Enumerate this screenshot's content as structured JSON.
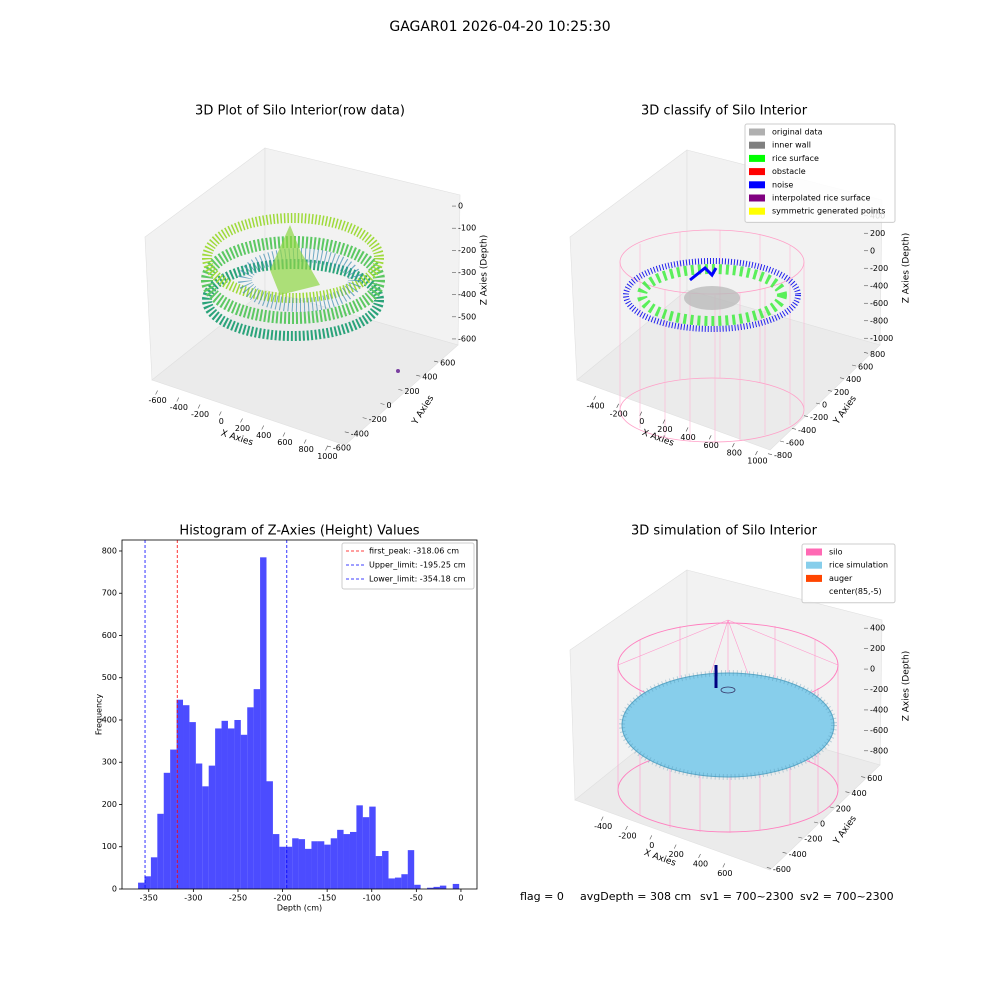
{
  "suptitle": "GAGAR01 2026-04-20 10:25:30",
  "chart_data": [
    {
      "type": "scatter3d",
      "title": "3D Plot of Silo Interior(row data)",
      "xlabel": "X Axies",
      "ylabel": "Y Axies",
      "zlabel": "Z Axies (Depth)",
      "xlim": [
        -700,
        1100
      ],
      "xticks": [
        -600,
        -400,
        -200,
        0,
        200,
        400,
        600,
        800,
        1000
      ],
      "ylim": [
        -700,
        700
      ],
      "yticks": [
        -600,
        -400,
        -200,
        0,
        200,
        400,
        600
      ],
      "zlim": [
        -650,
        50
      ],
      "zticks": [
        0,
        -100,
        -200,
        -300,
        -400,
        -500,
        -600
      ]
    },
    {
      "type": "scatter3d",
      "title": "3D classify of Silo Interior",
      "xlabel": "X Axies",
      "ylabel": "Y Axies",
      "zlabel": "Z Axies (Depth)",
      "xlim": [
        -500,
        1100
      ],
      "xticks": [
        -400,
        -200,
        0,
        200,
        400,
        600,
        800,
        1000
      ],
      "ylim": [
        -900,
        900
      ],
      "yticks": [
        -800,
        -600,
        -400,
        -200,
        0,
        200,
        400,
        600,
        800
      ],
      "zlim": [
        -1100,
        500
      ],
      "zticks": [
        400,
        200,
        0,
        -200,
        -400,
        -600,
        -800,
        -1000
      ],
      "legend": [
        {
          "name": "original data",
          "color": "#b0b0b0"
        },
        {
          "name": "inner wall",
          "color": "#808080"
        },
        {
          "name": "rice surface",
          "color": "#00ff00"
        },
        {
          "name": "obstacle",
          "color": "#ff0000"
        },
        {
          "name": "noise",
          "color": "#0000ff"
        },
        {
          "name": "interpolated rice surface",
          "color": "#800080"
        },
        {
          "name": "symmetric generated points",
          "color": "#ffff00"
        }
      ]
    },
    {
      "type": "histogram",
      "title": "Histogram of Z-Axies (Height) Values",
      "xlabel": "Depth (cm)",
      "ylabel": "Frequency",
      "color": "#0000ff",
      "bins": [
        -362,
        -354.8,
        -347.6,
        -340.4,
        -333.2,
        -326,
        -318.8,
        -311.6,
        -304.4,
        -297.2,
        -290,
        -282.8,
        -275.6,
        -268.4,
        -261.2,
        -254,
        -246.8,
        -239.6,
        -232.4,
        -225.2,
        -218,
        -210.8,
        -203.6,
        -196.4,
        -189.2,
        -182,
        -174.8,
        -167.6,
        -160.4,
        -153.2,
        -146,
        -138.8,
        -131.6,
        -124.4,
        -117.2,
        -110,
        -102.8,
        -95.6,
        -88.4,
        -81.2,
        -74,
        -66.8,
        -59.6,
        -52.4,
        -45.2,
        -38,
        -30.8,
        -23.6,
        -16.4,
        -9.2,
        -2
      ],
      "counts": [
        15,
        30,
        75,
        178,
        275,
        330,
        448,
        435,
        395,
        297,
        243,
        292,
        380,
        398,
        380,
        400,
        365,
        430,
        473,
        785,
        255,
        130,
        100,
        100,
        120,
        118,
        95,
        113,
        113,
        105,
        120,
        140,
        130,
        135,
        198,
        170,
        195,
        78,
        90,
        25,
        27,
        35,
        92,
        10,
        0,
        3,
        5,
        8,
        0,
        12
      ],
      "xlim": [
        -380,
        18
      ],
      "xticks": [
        -350,
        -300,
        -250,
        -200,
        -150,
        -100,
        -50,
        0
      ],
      "ylim": [
        0,
        826
      ],
      "yticks": [
        0,
        100,
        200,
        300,
        400,
        500,
        600,
        700,
        800
      ],
      "lines": [
        {
          "label": "first_peak: -318.06 cm",
          "value": -318.06,
          "color": "#ff0000"
        },
        {
          "label": "Upper_limit: -195.25 cm",
          "value": -195.25,
          "color": "#0000ff"
        },
        {
          "label": "Lower_limit: -354.18 cm",
          "value": -354.18,
          "color": "#0000ff"
        }
      ]
    },
    {
      "type": "scatter3d",
      "title": "3D simulation of Silo Interior",
      "xlabel": "X Axies",
      "ylabel": "Y Axies",
      "zlabel": "Z Axies (Depth)",
      "xlim": [
        -500,
        700
      ],
      "xticks": [
        -400,
        -200,
        0,
        200,
        400,
        600
      ],
      "ylim": [
        -700,
        700
      ],
      "yticks": [
        -600,
        -400,
        -200,
        0,
        200,
        400,
        600
      ],
      "zlim": [
        -900,
        500
      ],
      "zticks": [
        400,
        200,
        0,
        -200,
        -400,
        -600,
        -800
      ],
      "legend": [
        {
          "name": "silo",
          "color": "#ff69b4"
        },
        {
          "name": "rice simulation",
          "color": "#87ceeb"
        },
        {
          "name": "auger",
          "color": "#ff4500"
        },
        {
          "name": "center(85,-5)",
          "color": "#ffffff"
        }
      ]
    }
  ],
  "status": [
    "flag = 0",
    "avgDepth = 308 cm",
    "sv1 = 700~2300",
    "sv2 = 700~2300"
  ]
}
